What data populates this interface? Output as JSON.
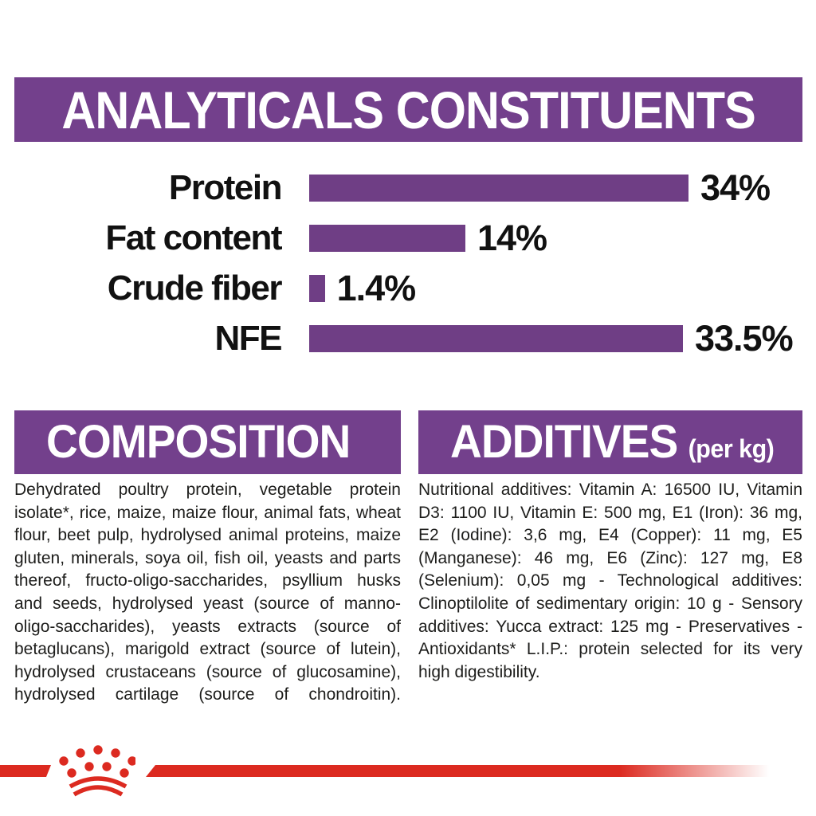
{
  "colors": {
    "purple": "#73408C",
    "bar_purple": "#6F3E85",
    "red": "#DC2A20",
    "text": "#1d1d1b",
    "header_text": "#ffffff"
  },
  "header": {
    "title": "ANALYTICALS CONSTITUENTS"
  },
  "chart_data": {
    "type": "bar",
    "orientation": "horizontal",
    "title": "ANALYTICALS CONSTITUENTS",
    "categories": [
      "Protein",
      "Fat content",
      "Crude fiber",
      "NFE"
    ],
    "values": [
      34,
      14,
      1.4,
      33.5
    ],
    "value_labels": [
      "34%",
      "14%",
      "1.4%",
      "33.5%"
    ],
    "unit": "%",
    "xlim": [
      0,
      34
    ],
    "bar_color": "#6F3E85",
    "grid": false,
    "legend": false,
    "value_label_position": "right-of-bar"
  },
  "composition": {
    "title": "COMPOSITION",
    "body": "Dehydrated poultry protein, vegetable protein isolate*, rice, maize, maize flour, animal fats, wheat flour, beet pulp, hydrolysed animal proteins, maize gluten, minerals, soya oil, fish oil, yeasts and parts thereof, fructo-oligo-saccharides, psyllium husks and seeds, hydrolysed yeast (source of manno-oligo-saccharides), yeasts extracts (source of betaglucans), marigold extract (source of lutein), hydrolysed crustaceans (source of glucosamine), hydrolysed cartilage (source of chondroitin)."
  },
  "additives": {
    "title": "ADDITIVES",
    "unit_label": "(per kg)",
    "body": "Nutritional additives: Vitamin A: 16500 IU, Vitamin D3: 1100 IU, Vitamin E: 500 mg, E1 (Iron): 36 mg, E2 (Iodine): 3,6 mg, E4 (Copper): 11 mg, E5 (Manganese): 46 mg, E6 (Zinc): 127 mg, E8 (Selenium): 0,05 mg - Technological additives: Clinoptilolite of sedimentary origin: 10 g - Sensory additives: Yucca extract: 125 mg - Preservatives - Antioxidants* L.I.P.: protein selected for its very high digestibility."
  },
  "footer": {
    "brand_icon": "royal-canin-crown"
  }
}
